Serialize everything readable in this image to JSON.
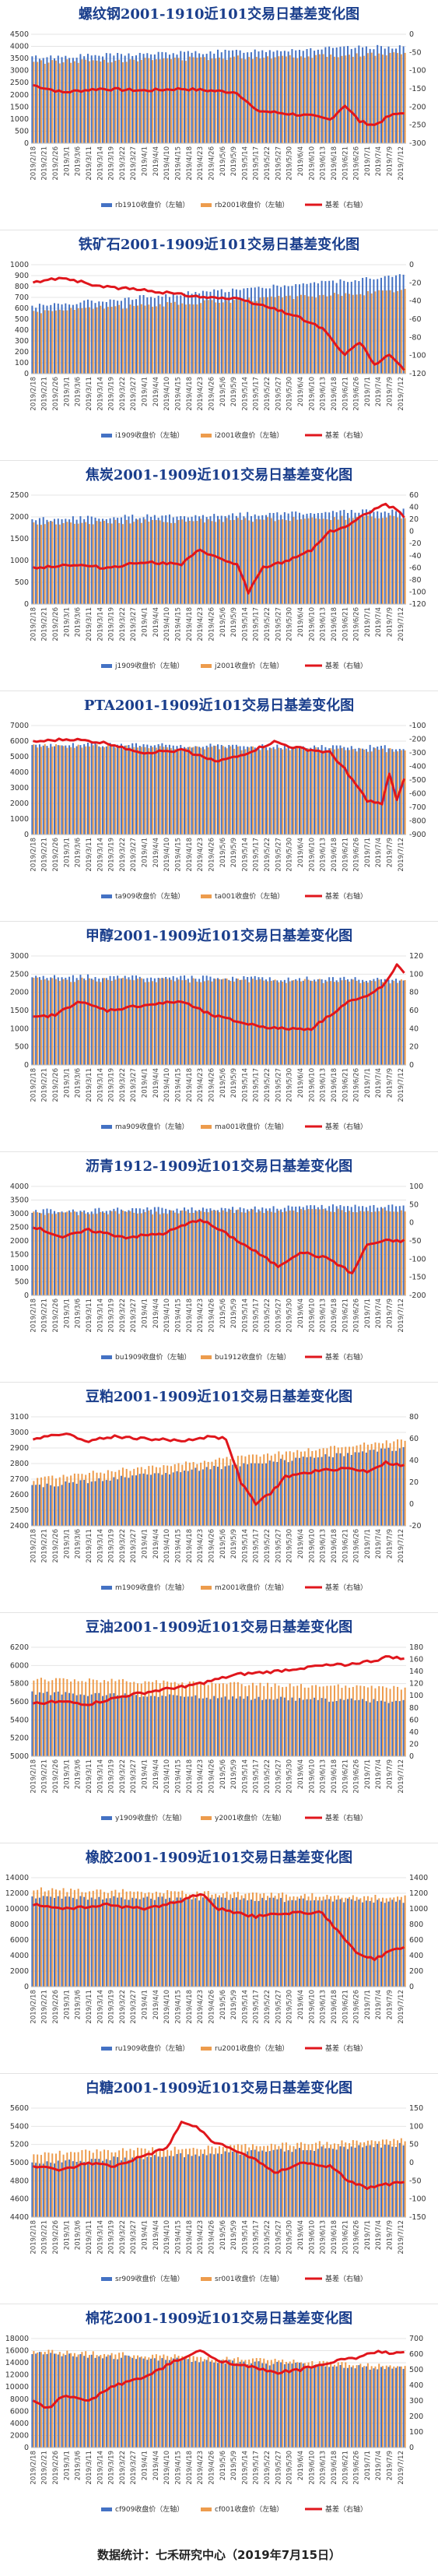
{
  "footer": "数据统计：七禾研究中心（2019年7月15日）",
  "colors": {
    "near": "#4472c4",
    "far": "#ed9c4d",
    "basis": "#e0161c"
  },
  "chart_data": [
    {
      "type": "bar",
      "title": "螺纹钢2001-1910近101交易日基差变化图",
      "legend": [
        "rb1910收盘价（左轴）",
        "rb2001收盘价（左轴）",
        "基差（右轴）"
      ],
      "yticks_left": [
        0,
        500,
        1000,
        1500,
        2000,
        2500,
        3000,
        3500,
        4000,
        4500
      ],
      "yticks_right": [
        0,
        -50,
        -100,
        -150,
        -200,
        -250,
        -300
      ],
      "ylim_left": [
        0,
        4500
      ],
      "ylim_right": [
        -300,
        0
      ],
      "near_start": 3550,
      "near_end": 4000,
      "far_start": 3350,
      "far_end": 3700,
      "basis_pts": [
        [
          0,
          -140
        ],
        [
          8,
          -160
        ],
        [
          18,
          -150
        ],
        [
          30,
          -155
        ],
        [
          40,
          -150
        ],
        [
          55,
          -160
        ],
        [
          60,
          -210
        ],
        [
          65,
          -215
        ],
        [
          75,
          -225
        ],
        [
          80,
          -235
        ],
        [
          84,
          -195
        ],
        [
          88,
          -240
        ],
        [
          92,
          -250
        ],
        [
          96,
          -225
        ],
        [
          100,
          -215
        ]
      ]
    },
    {
      "type": "bar",
      "title": "铁矿石2001-1909近101交易日基差变化图",
      "legend": [
        "i1909收盘价（左轴）",
        "i2001收盘价（左轴）",
        "基差（右轴）"
      ],
      "yticks_left": [
        0,
        100,
        200,
        300,
        400,
        500,
        600,
        700,
        800,
        900,
        1000
      ],
      "yticks_right": [
        0,
        -20,
        -40,
        -60,
        -80,
        -100,
        -120
      ],
      "ylim_left": [
        0,
        1000
      ],
      "ylim_right": [
        -120,
        0
      ],
      "near_start": 620,
      "near_end": 900,
      "far_start": 570,
      "far_end": 760,
      "basis_pts": [
        [
          0,
          -20
        ],
        [
          8,
          -14
        ],
        [
          18,
          -24
        ],
        [
          30,
          -28
        ],
        [
          45,
          -35
        ],
        [
          55,
          -38
        ],
        [
          62,
          -45
        ],
        [
          70,
          -55
        ],
        [
          78,
          -70
        ],
        [
          84,
          -100
        ],
        [
          88,
          -85
        ],
        [
          92,
          -110
        ],
        [
          96,
          -100
        ],
        [
          100,
          -115
        ]
      ]
    },
    {
      "type": "bar",
      "title": "焦炭2001-1909近101交易日基差变化图",
      "legend": [
        "j1909收盘价（左轴）",
        "j2001收盘价（左轴）",
        "基差（右轴）"
      ],
      "yticks_left": [
        0,
        500,
        1000,
        1500,
        2000,
        2500
      ],
      "yticks_right": [
        -120,
        -100,
        -80,
        -60,
        -40,
        -20,
        0,
        20,
        40,
        60
      ],
      "ylim_left": [
        0,
        2500
      ],
      "ylim_right": [
        -120,
        60
      ],
      "near_start": 1950,
      "near_end": 2150,
      "far_start": 1850,
      "far_end": 2000,
      "basis_pts": [
        [
          0,
          -60
        ],
        [
          10,
          -55
        ],
        [
          20,
          -60
        ],
        [
          30,
          -50
        ],
        [
          40,
          -55
        ],
        [
          45,
          -30
        ],
        [
          50,
          -45
        ],
        [
          55,
          -55
        ],
        [
          58,
          -100
        ],
        [
          62,
          -60
        ],
        [
          68,
          -50
        ],
        [
          75,
          -30
        ],
        [
          80,
          0
        ],
        [
          85,
          10
        ],
        [
          90,
          30
        ],
        [
          94,
          45
        ],
        [
          97,
          40
        ],
        [
          100,
          25
        ]
      ]
    },
    {
      "type": "bar",
      "title": "PTA2001-1909近101交易日基差变化图",
      "legend": [
        "ta909收盘价（左轴）",
        "ta001收盘价（左轴）",
        "基差（右轴）"
      ],
      "yticks_left": [
        0,
        1000,
        2000,
        3000,
        4000,
        5000,
        6000,
        7000
      ],
      "yticks_right": [
        -900,
        -800,
        -700,
        -600,
        -500,
        -400,
        -300,
        -200,
        -100
      ],
      "ylim_left": [
        0,
        7000
      ],
      "ylim_right": [
        -900,
        -100
      ],
      "near_start": 5800,
      "near_end": 5600,
      "far_start": 5700,
      "far_end": 5400,
      "basis_pts": [
        [
          0,
          -220
        ],
        [
          10,
          -200
        ],
        [
          20,
          -230
        ],
        [
          30,
          -300
        ],
        [
          40,
          -280
        ],
        [
          50,
          -360
        ],
        [
          55,
          -330
        ],
        [
          65,
          -220
        ],
        [
          70,
          -260
        ],
        [
          80,
          -300
        ],
        [
          84,
          -420
        ],
        [
          90,
          -650
        ],
        [
          94,
          -680
        ],
        [
          96,
          -450
        ],
        [
          98,
          -650
        ],
        [
          100,
          -500
        ]
      ]
    },
    {
      "type": "bar",
      "title": "甲醇2001-1909近101交易日基差变化图",
      "legend": [
        "ma909收盘价（左轴）",
        "ma001收盘价（左轴）",
        "基差（右轴）"
      ],
      "yticks_left": [
        0,
        500,
        1000,
        1500,
        2000,
        2500,
        3000
      ],
      "yticks_right": [
        0,
        20,
        40,
        60,
        80,
        100,
        120
      ],
      "ylim_left": [
        0,
        3000
      ],
      "ylim_right": [
        0,
        120
      ],
      "near_start": 2450,
      "near_end": 2350,
      "far_start": 2350,
      "far_end": 2300,
      "basis_pts": [
        [
          0,
          52
        ],
        [
          6,
          55
        ],
        [
          12,
          70
        ],
        [
          20,
          60
        ],
        [
          30,
          66
        ],
        [
          40,
          70
        ],
        [
          48,
          55
        ],
        [
          58,
          45
        ],
        [
          66,
          40
        ],
        [
          75,
          40
        ],
        [
          80,
          55
        ],
        [
          85,
          70
        ],
        [
          90,
          75
        ],
        [
          95,
          90
        ],
        [
          98,
          110
        ],
        [
          100,
          100
        ]
      ]
    },
    {
      "type": "bar",
      "title": "沥青1912-1909近101交易日基差变化图",
      "legend": [
        "bu1909收盘价（左轴）",
        "bu1912收盘价（左轴）",
        "基差（右轴）"
      ],
      "yticks_left": [
        0,
        500,
        1000,
        1500,
        2000,
        2500,
        3000,
        3500,
        4000
      ],
      "yticks_right": [
        -200,
        -150,
        -100,
        -50,
        0,
        50,
        100
      ],
      "ylim_left": [
        0,
        4000
      ],
      "ylim_right": [
        -200,
        100
      ],
      "near_start": 3100,
      "near_end": 3300,
      "far_start": 3000,
      "far_end": 3150,
      "basis_pts": [
        [
          0,
          -10
        ],
        [
          8,
          -40
        ],
        [
          15,
          -20
        ],
        [
          25,
          -40
        ],
        [
          35,
          -30
        ],
        [
          45,
          10
        ],
        [
          52,
          -30
        ],
        [
          60,
          -80
        ],
        [
          66,
          -120
        ],
        [
          72,
          -80
        ],
        [
          80,
          -100
        ],
        [
          86,
          -140
        ],
        [
          90,
          -60
        ],
        [
          95,
          -50
        ],
        [
          100,
          -50
        ]
      ]
    },
    {
      "type": "bar",
      "title": "豆粕2001-1909近101交易日基差变化图",
      "legend": [
        "m1909收盘价（左轴）",
        "m2001收盘价（左轴）",
        "基差（右轴）"
      ],
      "yticks_left": [
        2400,
        2500,
        2600,
        2700,
        2800,
        2900,
        3000,
        3100
      ],
      "yticks_right": [
        -20,
        0,
        20,
        40,
        60,
        80
      ],
      "ylim_left": [
        2400,
        3100
      ],
      "ylim_right": [
        -20,
        80
      ],
      "near_start": 2650,
      "near_end": 2900,
      "far_start": 2700,
      "far_end": 2950,
      "basis_pts": [
        [
          0,
          60
        ],
        [
          8,
          65
        ],
        [
          15,
          58
        ],
        [
          22,
          62
        ],
        [
          30,
          60
        ],
        [
          40,
          58
        ],
        [
          48,
          62
        ],
        [
          52,
          60
        ],
        [
          56,
          20
        ],
        [
          60,
          0
        ],
        [
          64,
          10
        ],
        [
          68,
          25
        ],
        [
          76,
          30
        ],
        [
          84,
          33
        ],
        [
          90,
          30
        ],
        [
          95,
          38
        ],
        [
          100,
          35
        ]
      ]
    },
    {
      "type": "bar",
      "title": "豆油2001-1909近101交易日基差变化图",
      "legend": [
        "y1909收盘价（左轴）",
        "y2001收盘价（左轴）",
        "基差（右轴）"
      ],
      "yticks_left": [
        5000,
        5200,
        5400,
        5600,
        5800,
        6000,
        6200
      ],
      "yticks_right": [
        0,
        20,
        40,
        60,
        80,
        100,
        120,
        140,
        160,
        180
      ],
      "ylim_left": [
        5000,
        6200
      ],
      "ylim_right": [
        0,
        180
      ],
      "near_start": 5700,
      "near_end": 5600,
      "far_start": 5850,
      "far_end": 5750,
      "basis_pts": [
        [
          0,
          88
        ],
        [
          8,
          90
        ],
        [
          15,
          86
        ],
        [
          25,
          100
        ],
        [
          35,
          110
        ],
        [
          45,
          120
        ],
        [
          55,
          135
        ],
        [
          65,
          140
        ],
        [
          75,
          148
        ],
        [
          85,
          152
        ],
        [
          92,
          158
        ],
        [
          96,
          165
        ],
        [
          100,
          160
        ]
      ]
    },
    {
      "type": "bar",
      "title": "橡胶2001-1909近101交易日基差变化图",
      "legend": [
        "ru1909收盘价（左轴）",
        "ru2001收盘价（左轴）",
        "基差（右轴）"
      ],
      "yticks_left": [
        0,
        2000,
        4000,
        6000,
        8000,
        10000,
        12000,
        14000
      ],
      "yticks_right": [
        0,
        200,
        400,
        600,
        800,
        1000,
        1200,
        1400
      ],
      "ylim_left": [
        0,
        14000
      ],
      "ylim_right": [
        0,
        1400
      ],
      "near_start": 11500,
      "near_end": 11000,
      "far_start": 12500,
      "far_end": 11500,
      "basis_pts": [
        [
          0,
          1050
        ],
        [
          10,
          1000
        ],
        [
          20,
          1050
        ],
        [
          30,
          1000
        ],
        [
          40,
          1100
        ],
        [
          45,
          1200
        ],
        [
          50,
          1000
        ],
        [
          60,
          900
        ],
        [
          70,
          950
        ],
        [
          78,
          950
        ],
        [
          84,
          600
        ],
        [
          88,
          400
        ],
        [
          92,
          350
        ],
        [
          96,
          450
        ],
        [
          100,
          500
        ]
      ]
    },
    {
      "type": "bar",
      "title": "白糖2001-1909近101交易日基差变化图",
      "legend": [
        "sr909收盘价（左轴）",
        "sr001收盘价（左轴）",
        "基差（右轴）"
      ],
      "yticks_left": [
        4400,
        4600,
        4800,
        5000,
        5200,
        5400,
        5600
      ],
      "yticks_right": [
        -150,
        -100,
        -50,
        0,
        50,
        100,
        150
      ],
      "ylim_left": [
        4400,
        5600
      ],
      "ylim_right": [
        -150,
        150
      ],
      "near_start": 5000,
      "near_end": 5200,
      "far_start": 5100,
      "far_end": 5250,
      "basis_pts": [
        [
          0,
          -10
        ],
        [
          8,
          -20
        ],
        [
          15,
          0
        ],
        [
          22,
          -10
        ],
        [
          30,
          20
        ],
        [
          36,
          40
        ],
        [
          40,
          110
        ],
        [
          44,
          100
        ],
        [
          48,
          60
        ],
        [
          55,
          30
        ],
        [
          60,
          10
        ],
        [
          65,
          -30
        ],
        [
          72,
          0
        ],
        [
          80,
          -10
        ],
        [
          85,
          -50
        ],
        [
          90,
          -70
        ],
        [
          95,
          -60
        ],
        [
          100,
          -55
        ]
      ]
    },
    {
      "type": "bar",
      "title": "棉花2001-1909近101交易日基差变化图",
      "legend": [
        "cf909收盘价（左轴）",
        "cf001收盘价（左轴）",
        "基差（右轴）"
      ],
      "yticks_left": [
        0,
        2000,
        4000,
        6000,
        8000,
        10000,
        12000,
        14000,
        16000,
        18000
      ],
      "yticks_right": [
        0,
        100,
        200,
        300,
        400,
        500,
        600,
        700
      ],
      "ylim_left": [
        0,
        18000
      ],
      "ylim_right": [
        0,
        700
      ],
      "near_start": 15500,
      "near_end": 13000,
      "far_start": 16000,
      "far_end": 13500,
      "basis_pts": [
        [
          0,
          300
        ],
        [
          4,
          250
        ],
        [
          8,
          330
        ],
        [
          15,
          300
        ],
        [
          22,
          400
        ],
        [
          30,
          450
        ],
        [
          38,
          550
        ],
        [
          45,
          620
        ],
        [
          50,
          560
        ],
        [
          58,
          520
        ],
        [
          65,
          480
        ],
        [
          72,
          500
        ],
        [
          80,
          550
        ],
        [
          88,
          580
        ],
        [
          93,
          620
        ],
        [
          97,
          600
        ],
        [
          100,
          610
        ]
      ]
    }
  ],
  "x_dates": [
    "2019/2/18",
    "2019/2/21",
    "2019/2/26",
    "2019/3/1",
    "2019/3/6",
    "2019/3/11",
    "2019/3/14",
    "2019/3/19",
    "2019/3/22",
    "2019/3/27",
    "2019/4/1",
    "2019/4/4",
    "2019/4/10",
    "2019/4/15",
    "2019/4/18",
    "2019/4/23",
    "2019/4/26",
    "2019/5/6",
    "2019/5/9",
    "2019/5/14",
    "2019/5/17",
    "2019/5/22",
    "2019/5/27",
    "2019/5/30",
    "2019/6/4",
    "2019/6/10",
    "2019/6/13",
    "2019/6/18",
    "2019/6/21",
    "2019/6/26",
    "2019/7/1",
    "2019/7/4",
    "2019/7/9",
    "2019/7/12"
  ]
}
